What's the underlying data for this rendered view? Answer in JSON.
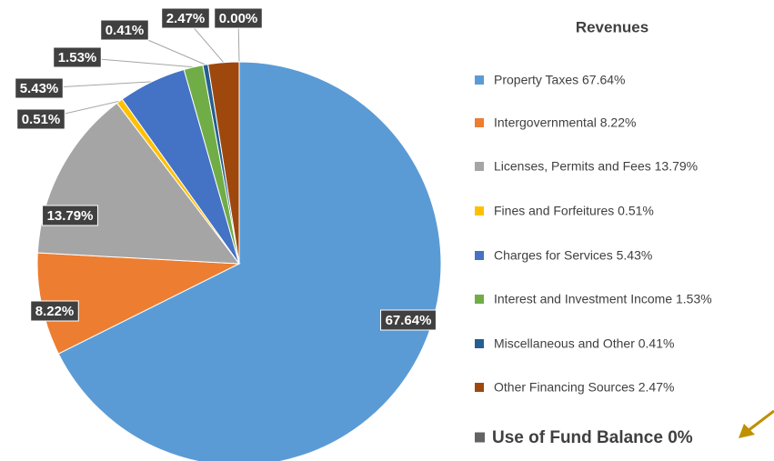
{
  "chart_data": {
    "type": "pie",
    "legend_title": "Revenues",
    "categories": [
      "Property Taxes 67.64%",
      "Intergovernmental  8.22%",
      "Licenses, Permits and Fees  13.79%",
      "Fines and Forfeitures  0.51%",
      "Charges for Services  5.43%",
      "Interest and Investment Income 1.53%",
      "Miscellaneous and Other  0.41%",
      "Other Financing Sources  2.47%",
      "Use of Fund Balance  0%"
    ],
    "values": [
      67.64,
      8.22,
      13.79,
      0.51,
      5.43,
      1.53,
      0.41,
      2.47,
      0.0
    ],
    "value_labels": [
      "67.64%",
      "8.22%",
      "13.79%",
      "0.51%",
      "5.43%",
      "1.53%",
      "0.41%",
      "2.47%",
      "0.00%"
    ],
    "colors": [
      "#5b9bd5",
      "#ed7d31",
      "#a5a5a5",
      "#ffc000",
      "#4472c4",
      "#70ad47",
      "#255e91",
      "#9e480e",
      "#636363"
    ],
    "legend": "right"
  }
}
